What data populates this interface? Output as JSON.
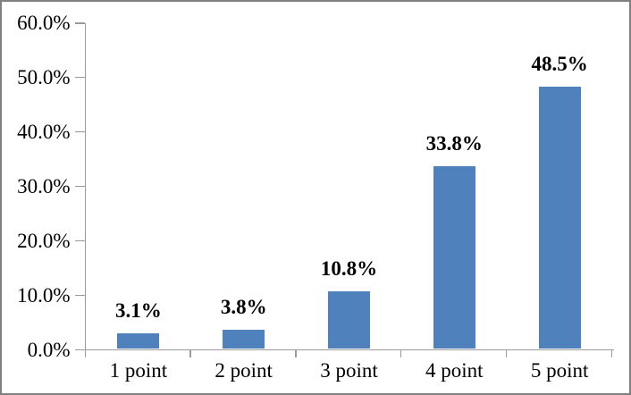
{
  "chart_data": {
    "type": "bar",
    "title": "",
    "xlabel": "",
    "ylabel": "",
    "categories": [
      "1 point",
      "2 point",
      "3 point",
      "4 point",
      "5 point"
    ],
    "values": [
      3.1,
      3.8,
      10.8,
      33.8,
      48.5
    ],
    "value_labels": [
      "3.1%",
      "3.8%",
      "10.8%",
      "33.8%",
      "48.5%"
    ],
    "y_tick_labels": [
      "0.0%",
      "10.0%",
      "20.0%",
      "30.0%",
      "40.0%",
      "50.0%",
      "60.0%"
    ],
    "ylim": [
      0,
      60
    ],
    "y_step": 10,
    "grid": "off",
    "legend": "none",
    "colors": {
      "bar": "#4F81BD",
      "axis": "#9B9B9B",
      "text": "#000000",
      "frame_border": "#808080",
      "background": "#FFFFFF"
    }
  }
}
